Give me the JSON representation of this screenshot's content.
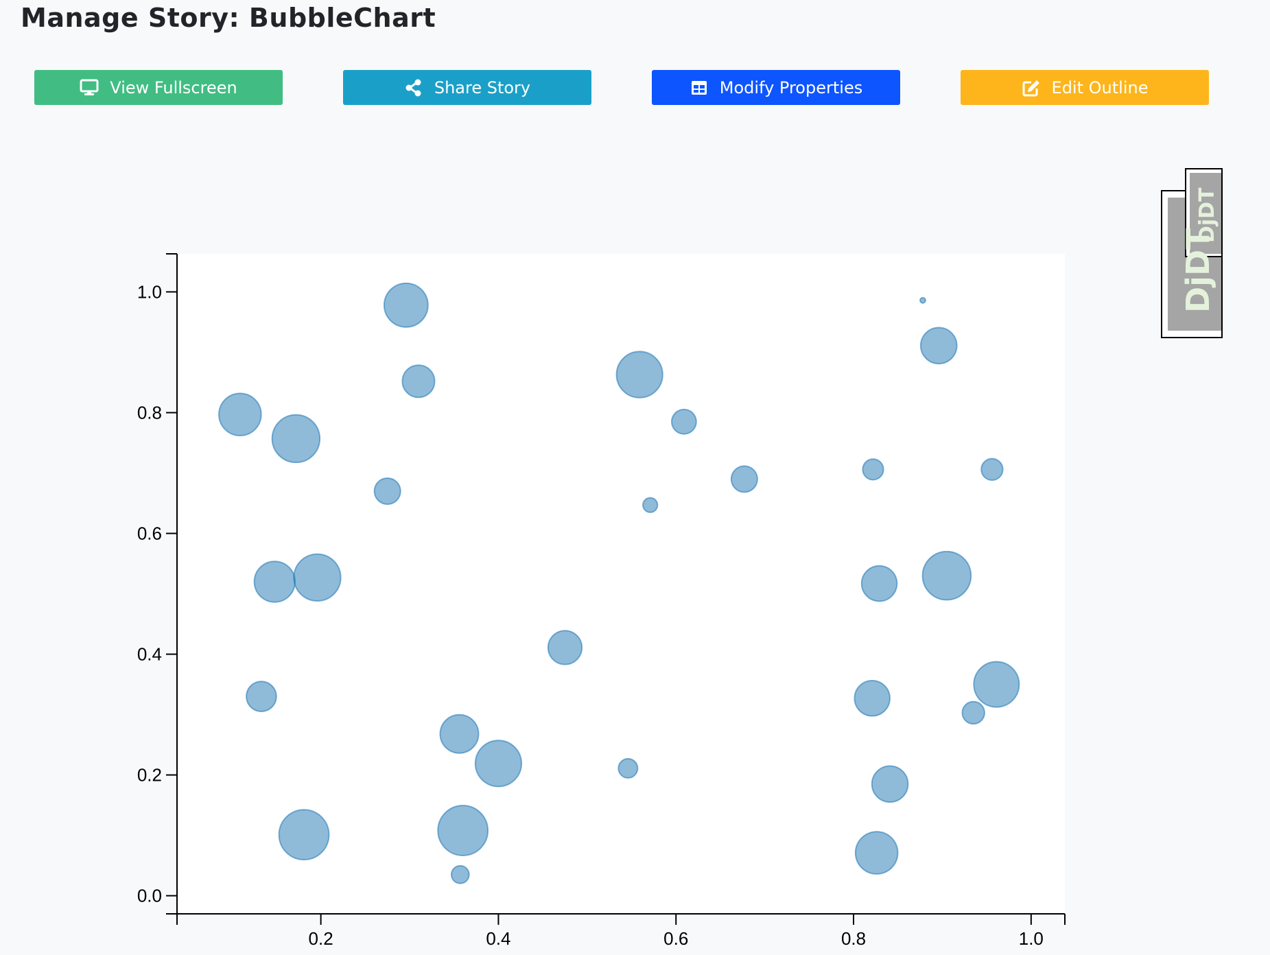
{
  "header": {
    "title": "Manage Story: BubbleChart"
  },
  "toolbar": {
    "buttons": [
      {
        "label": "View Fullscreen",
        "icon": "monitor-icon",
        "color": "#41bd83"
      },
      {
        "label": "Share Story",
        "icon": "share-icon",
        "color": "#1aa0c8"
      },
      {
        "label": "Modify Properties",
        "icon": "table-icon",
        "color": "#0d55ff"
      },
      {
        "label": "Edit Outline",
        "icon": "edit-icon",
        "color": "#fdb51b"
      }
    ]
  },
  "debug_toolbar": {
    "label": "DjDT"
  },
  "chart_data": {
    "type": "scatter",
    "title": "",
    "xlabel": "",
    "ylabel": "",
    "xlim": [
      0.038,
      1.038
    ],
    "ylim": [
      -0.03,
      1.063
    ],
    "x_ticks": [
      "0.2",
      "0.4",
      "0.6",
      "0.8",
      "1.0"
    ],
    "y_ticks": [
      "0.0",
      "0.2",
      "0.4",
      "0.6",
      "0.8",
      "1.0"
    ],
    "grid": false,
    "bubble_color": "#1f77b4",
    "points": [
      {
        "x": 0.296,
        "y": 0.978,
        "size": 0.57
      },
      {
        "x": 0.31,
        "y": 0.852,
        "size": 0.42
      },
      {
        "x": 0.109,
        "y": 0.797,
        "size": 0.55
      },
      {
        "x": 0.172,
        "y": 0.757,
        "size": 0.62
      },
      {
        "x": 0.275,
        "y": 0.67,
        "size": 0.34
      },
      {
        "x": 0.148,
        "y": 0.52,
        "size": 0.53
      },
      {
        "x": 0.196,
        "y": 0.527,
        "size": 0.61
      },
      {
        "x": 0.133,
        "y": 0.33,
        "size": 0.39
      },
      {
        "x": 0.356,
        "y": 0.268,
        "size": 0.5
      },
      {
        "x": 0.4,
        "y": 0.219,
        "size": 0.6
      },
      {
        "x": 0.181,
        "y": 0.101,
        "size": 0.65
      },
      {
        "x": 0.36,
        "y": 0.108,
        "size": 0.65
      },
      {
        "x": 0.357,
        "y": 0.035,
        "size": 0.23
      },
      {
        "x": 0.475,
        "y": 0.411,
        "size": 0.44
      },
      {
        "x": 0.546,
        "y": 0.211,
        "size": 0.25
      },
      {
        "x": 0.559,
        "y": 0.863,
        "size": 0.6
      },
      {
        "x": 0.609,
        "y": 0.785,
        "size": 0.32
      },
      {
        "x": 0.571,
        "y": 0.647,
        "size": 0.19
      },
      {
        "x": 0.677,
        "y": 0.69,
        "size": 0.34
      },
      {
        "x": 0.878,
        "y": 0.986,
        "size": 0.07
      },
      {
        "x": 0.896,
        "y": 0.911,
        "size": 0.47
      },
      {
        "x": 0.822,
        "y": 0.706,
        "size": 0.27
      },
      {
        "x": 0.956,
        "y": 0.706,
        "size": 0.28
      },
      {
        "x": 0.829,
        "y": 0.517,
        "size": 0.46
      },
      {
        "x": 0.905,
        "y": 0.53,
        "size": 0.63
      },
      {
        "x": 0.821,
        "y": 0.327,
        "size": 0.46
      },
      {
        "x": 0.935,
        "y": 0.303,
        "size": 0.29
      },
      {
        "x": 0.961,
        "y": 0.35,
        "size": 0.59
      },
      {
        "x": 0.841,
        "y": 0.185,
        "size": 0.47
      },
      {
        "x": 0.826,
        "y": 0.071,
        "size": 0.55
      }
    ]
  }
}
